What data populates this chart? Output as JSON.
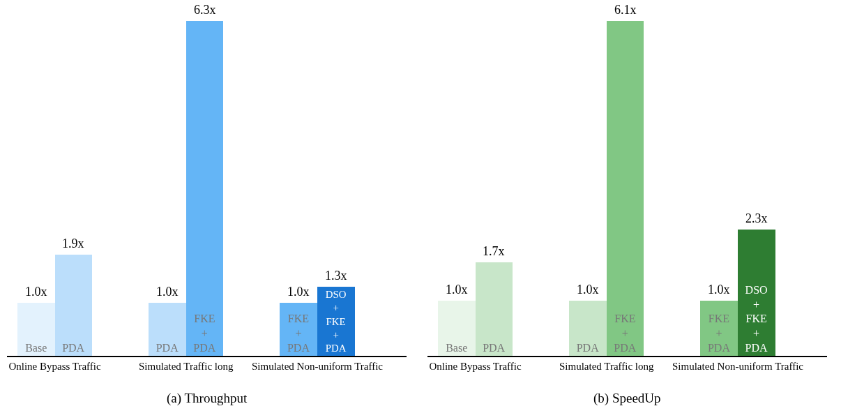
{
  "chart_data": [
    {
      "type": "bar",
      "title": "(a) Throughput",
      "tick_labels": "x",
      "legend": false,
      "grid": false,
      "categories": [
        "Online Bypass Traffic",
        "Simulated Traffic long",
        "Simulated Non-uniform Traffic"
      ],
      "series": [
        {
          "name": "Base",
          "color": "#e3f2fd",
          "values": [
            1.0,
            null,
            null
          ],
          "value_labels": [
            "1.0x",
            null,
            null
          ]
        },
        {
          "name": "PDA",
          "color": "#bbdefb",
          "values": [
            1.9,
            1.0,
            null
          ],
          "value_labels": [
            "1.9x",
            "1.0x",
            null
          ]
        },
        {
          "name": "FKE + PDA",
          "color": "#64b5f6",
          "values": [
            null,
            6.3,
            1.0
          ],
          "value_labels": [
            null,
            "6.3x",
            "1.0x"
          ]
        },
        {
          "name": "DSO + FKE + PDA",
          "color": "#1976d2",
          "values": [
            null,
            null,
            1.3
          ],
          "value_labels": [
            null,
            null,
            "1.3x"
          ]
        }
      ]
    },
    {
      "type": "bar",
      "title": "(b) SpeedUp",
      "tick_labels": "x",
      "legend": false,
      "grid": false,
      "categories": [
        "Online Bypass Traffic",
        "Simulated Traffic long",
        "Simulated Non-uniform Traffic"
      ],
      "series": [
        {
          "name": "Base",
          "color": "#e8f5e9",
          "values": [
            1.0,
            null,
            null
          ],
          "value_labels": [
            "1.0x",
            null,
            null
          ]
        },
        {
          "name": "PDA",
          "color": "#c8e6c9",
          "values": [
            1.7,
            1.0,
            null
          ],
          "value_labels": [
            "1.7x",
            "1.0x",
            null
          ]
        },
        {
          "name": "FKE + PDA",
          "color": "#81c784",
          "values": [
            null,
            6.1,
            1.0
          ],
          "value_labels": [
            null,
            "6.1x",
            "1.0x"
          ]
        },
        {
          "name": "DSO + FKE + PDA",
          "color": "#2e7d32",
          "values": [
            null,
            null,
            2.3
          ],
          "value_labels": [
            null,
            null,
            "2.3x"
          ]
        }
      ]
    }
  ]
}
